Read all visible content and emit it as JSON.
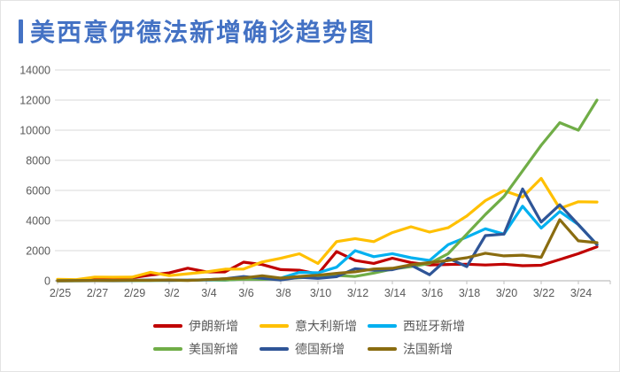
{
  "title": {
    "bar_glyph": "丨",
    "text": "美西意伊德法新增确诊趋势图"
  },
  "colors": {
    "title": "#4472C4",
    "axis_text": "#595959",
    "gridline": "#D9D9D9",
    "axis_line": "#BFBFBF",
    "background": "#FFFFFF"
  },
  "chart_data": {
    "type": "line",
    "title": "丨美西意伊德法新增确诊趋势图",
    "xlabel": "",
    "ylabel": "",
    "ylim": [
      0,
      14000
    ],
    "y_ticks": [
      0,
      2000,
      4000,
      6000,
      8000,
      10000,
      12000,
      14000
    ],
    "grid": true,
    "legend_position": "bottom",
    "x": [
      "2/25",
      "2/26",
      "2/27",
      "2/28",
      "2/29",
      "3/1",
      "3/2",
      "3/3",
      "3/4",
      "3/5",
      "3/6",
      "3/7",
      "3/8",
      "3/9",
      "3/10",
      "3/11",
      "3/12",
      "3/13",
      "3/14",
      "3/15",
      "3/16",
      "3/17",
      "3/18",
      "3/19",
      "3/20",
      "3/21",
      "3/22",
      "3/23",
      "3/24",
      "3/25"
    ],
    "x_tick_labels": [
      "2/25",
      "2/27",
      "2/29",
      "3/2",
      "3/4",
      "3/6",
      "3/8",
      "3/10",
      "3/12",
      "3/14",
      "3/16",
      "3/18",
      "3/20",
      "3/22",
      "3/24"
    ],
    "series": [
      {
        "key": "iran",
        "name": "伊朗新增",
        "color": "#C00000",
        "values": [
          34,
          44,
          106,
          143,
          205,
          385,
          523,
          835,
          586,
          591,
          1234,
          1076,
          743,
          700,
          450,
          1940,
          1350,
          1150,
          1500,
          1209,
          1053,
          1080,
          1100,
          1046,
          1100,
          1000,
          1028,
          1411,
          1800,
          2260
        ]
      },
      {
        "key": "italy",
        "name": "意大利新增",
        "color": "#FFC000",
        "values": [
          93,
          78,
          250,
          238,
          240,
          566,
          342,
          466,
          587,
          769,
          778,
          1247,
          1492,
          1797,
          1150,
          2600,
          2800,
          2600,
          3200,
          3590,
          3233,
          3526,
          4300,
          5322,
          5986,
          5560,
          6800,
          4800,
          5250,
          5230
        ]
      },
      {
        "key": "spain",
        "name": "西班牙新增",
        "color": "#00B0F0",
        "values": [
          0,
          2,
          4,
          8,
          13,
          17,
          36,
          37,
          57,
          39,
          124,
          101,
          174,
          557,
          530,
          900,
          2000,
          1600,
          1800,
          1530,
          1350,
          2400,
          2900,
          3450,
          3100,
          4950,
          3500,
          4600,
          3730,
          2400
        ]
      },
      {
        "key": "us",
        "name": "美国新增",
        "color": "#70AD47",
        "values": [
          0,
          1,
          6,
          1,
          8,
          23,
          20,
          31,
          68,
          45,
          105,
          95,
          121,
          200,
          287,
          351,
          290,
          511,
          777,
          940,
          1150,
          1800,
          3100,
          4400,
          5600,
          7300,
          9000,
          10500,
          10000,
          12000
        ]
      },
      {
        "key": "germany",
        "name": "德国新增",
        "color": "#2F5597",
        "values": [
          1,
          3,
          18,
          9,
          31,
          51,
          28,
          39,
          66,
          138,
          284,
          163,
          55,
          237,
          157,
          271,
          802,
          693,
          733,
          1043,
          400,
          1500,
          940,
          3000,
          3100,
          6100,
          3900,
          5050,
          3730,
          2400
        ]
      },
      {
        "key": "france",
        "name": "法国新增",
        "color": "#8A6C10",
        "values": [
          2,
          3,
          20,
          19,
          43,
          30,
          61,
          21,
          73,
          138,
          190,
          336,
          177,
          286,
          372,
          497,
          595,
          785,
          829,
          1060,
          1210,
          1350,
          1530,
          1830,
          1650,
          1700,
          1560,
          4060,
          2650,
          2530
        ]
      }
    ]
  }
}
